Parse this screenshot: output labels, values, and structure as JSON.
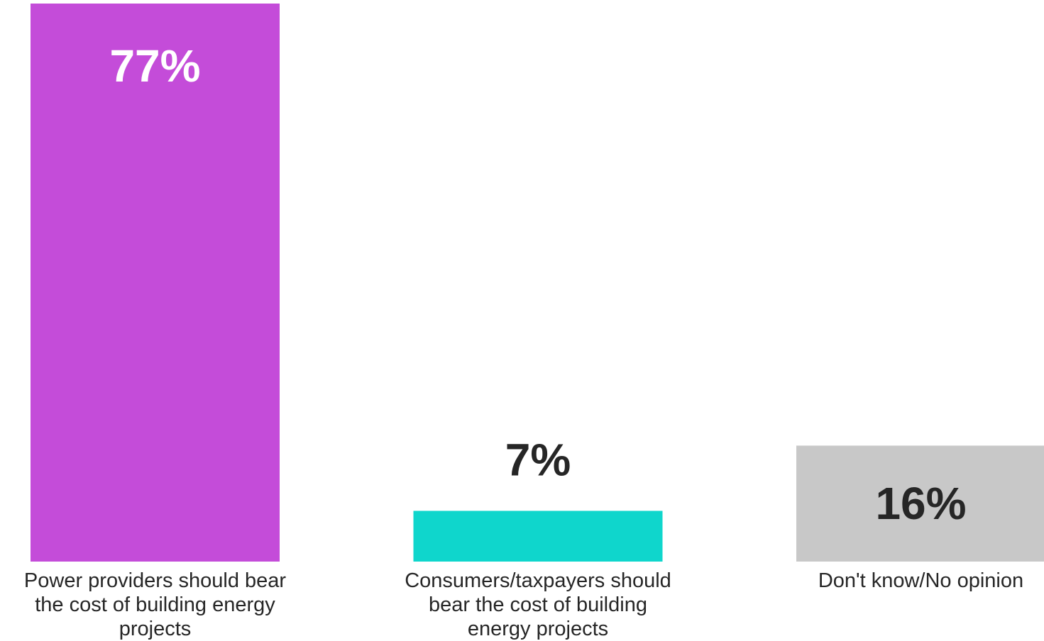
{
  "chart_data": {
    "type": "bar",
    "categories": [
      "Power providers should bear the cost of building energy projects",
      "Consumers/taxpayers should bear the cost of building energy projects",
      "Don't know/No opinion"
    ],
    "category_label_lines": [
      [
        "Power providers should bear",
        "the cost of building energy",
        "projects"
      ],
      [
        "Consumers/taxpayers should",
        "bear the cost of building",
        "energy projects"
      ],
      [
        "Don't know/No opinion"
      ]
    ],
    "values": [
      77,
      7,
      16
    ],
    "data_labels": [
      "77%",
      "7%",
      "16%"
    ],
    "bar_colors": [
      "#c44cd9",
      "#0fd6cc",
      "#c8c8c8"
    ],
    "label_colors": [
      "#ffffff",
      "#262626",
      "#262626"
    ],
    "label_position": [
      "inside-top",
      "above",
      "inside-center"
    ],
    "title": "",
    "xlabel": "",
    "ylabel": "",
    "ylim": [
      0,
      77
    ],
    "grid": false,
    "legend": "none"
  }
}
